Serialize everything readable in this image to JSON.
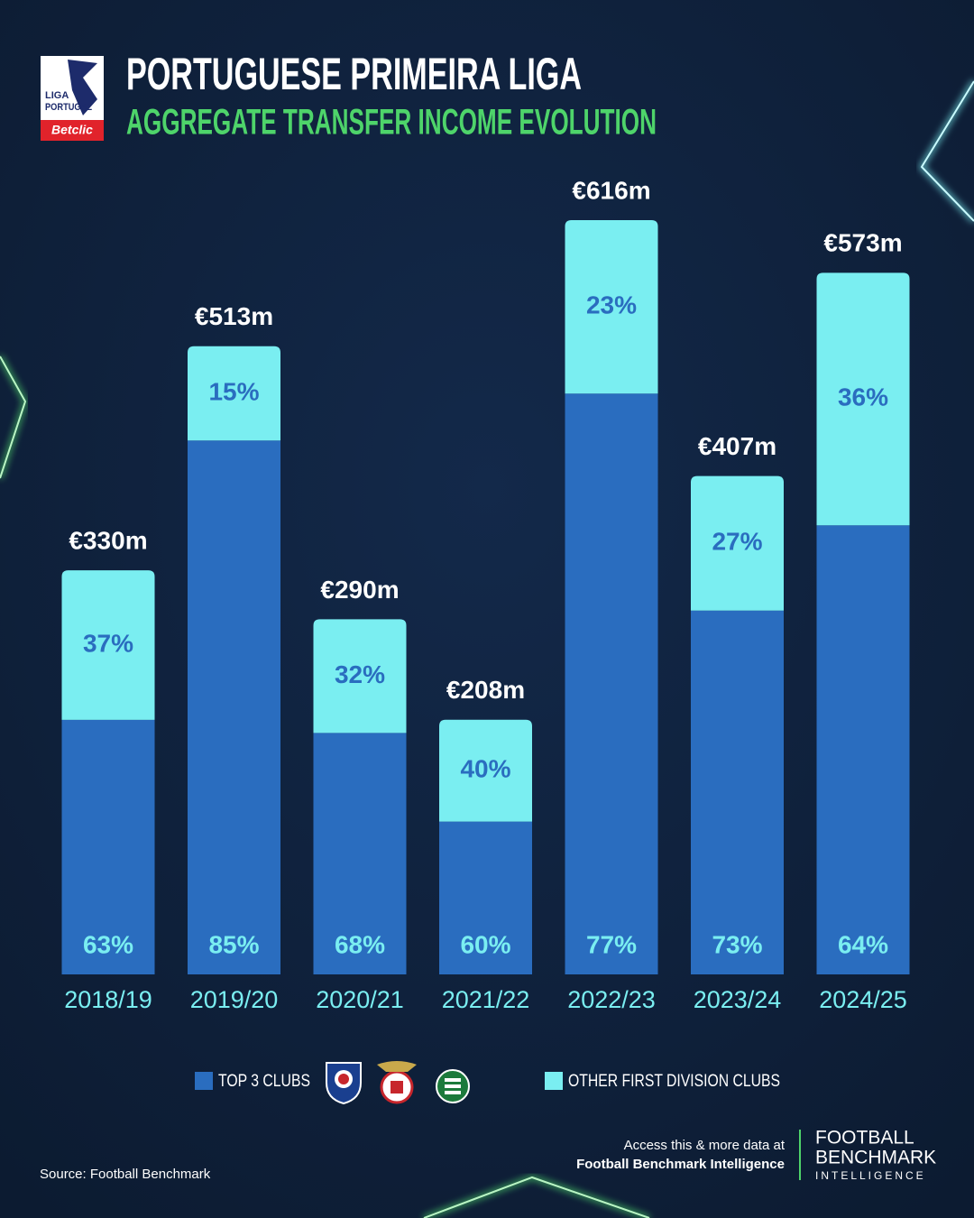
{
  "chart_data": {
    "type": "stacked_bar",
    "title": "PORTUGUESE PRIMEIRA LIGA",
    "subtitle": "AGGREGATE TRANSFER INCOME EVOLUTION",
    "categories": [
      "2018/19",
      "2019/20",
      "2020/21",
      "2021/22",
      "2022/23",
      "2023/24",
      "2024/25"
    ],
    "totals": {
      "values": [
        330,
        513,
        290,
        208,
        616,
        407,
        573
      ],
      "value_labels": [
        "€330m",
        "€513m",
        "€290m",
        "€208m",
        "€616m",
        "€407m",
        "€573m"
      ]
    },
    "series": [
      {
        "name": "TOP 3 CLUBS",
        "color": "#2a6dbf",
        "values": [
          63,
          85,
          68,
          60,
          77,
          73,
          64
        ],
        "value_labels": [
          "63%",
          "85%",
          "68%",
          "60%",
          "77%",
          "73%",
          "64%"
        ]
      },
      {
        "name": "OTHER FIRST DIVISION CLUBS",
        "color": "#7aeef1",
        "values": [
          37,
          15,
          32,
          40,
          23,
          27,
          36
        ],
        "value_labels": [
          "37%",
          "15%",
          "32%",
          "40%",
          "23%",
          "27%",
          "36%"
        ]
      }
    ]
  },
  "logo": {
    "line1": "LIGA",
    "line2": "PORTUGAL",
    "sponsor": "Betclic"
  },
  "source": "Source: Football Benchmark",
  "footer": {
    "line1": "Access this & more data at",
    "line2": "Football Benchmark Intelligence",
    "brand1": "FOOTBALL",
    "brand2": "BENCHMARK",
    "brand3": "INTELLIGENCE"
  }
}
